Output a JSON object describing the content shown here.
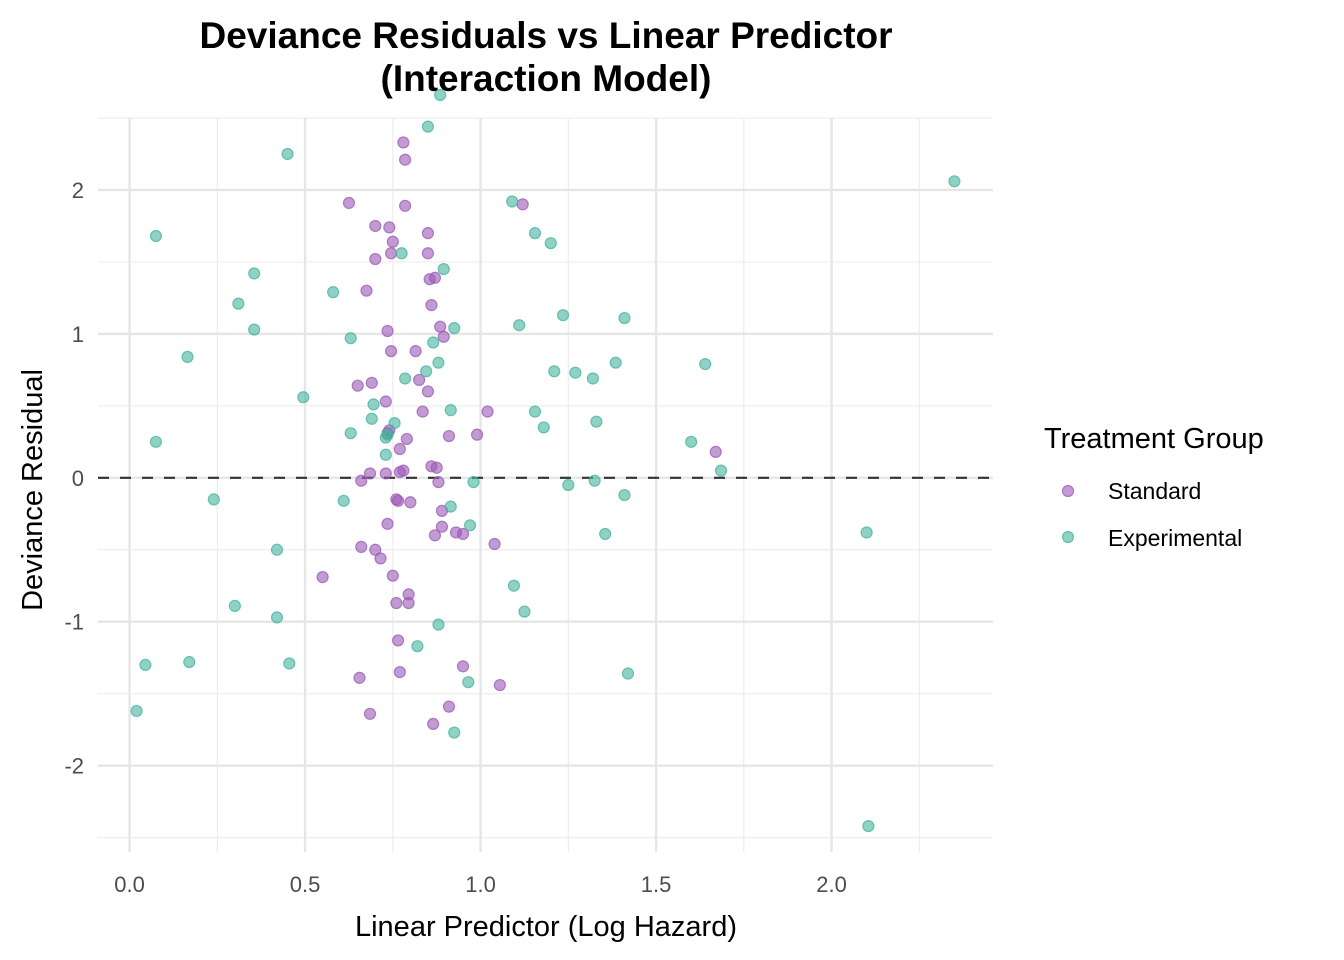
{
  "chart_data": {
    "type": "scatter",
    "title": "Deviance Residuals vs Linear Predictor",
    "subtitle": "(Interaction Model)",
    "xlabel": "Linear Predictor (Log Hazard)",
    "ylabel": "Deviance Residual",
    "xlim": [
      -0.09,
      2.46
    ],
    "ylim": [
      -2.6,
      2.5
    ],
    "x_ticks": [
      0.0,
      0.5,
      1.0,
      1.5,
      2.0
    ],
    "x_tick_labels": [
      "0.0",
      "0.5",
      "1.0",
      "1.5",
      "2.0"
    ],
    "y_ticks": [
      -2,
      -1,
      0,
      1,
      2
    ],
    "y_tick_labels": [
      "-2",
      "-1",
      "0",
      "1",
      "2"
    ],
    "grid": true,
    "reference_line": {
      "y": 0,
      "style": "dashed",
      "color": "#333333"
    },
    "legend": {
      "title": "Treatment Group",
      "position": "right",
      "entries": [
        "Standard",
        "Experimental"
      ]
    },
    "series": [
      {
        "name": "Standard",
        "color": "#9B59B6",
        "points": [
          [
            0.78,
            2.33
          ],
          [
            0.785,
            2.21
          ],
          [
            0.625,
            1.91
          ],
          [
            0.785,
            1.89
          ],
          [
            1.12,
            1.9
          ],
          [
            0.7,
            1.75
          ],
          [
            0.74,
            1.74
          ],
          [
            0.85,
            1.7
          ],
          [
            0.75,
            1.64
          ],
          [
            0.745,
            1.56
          ],
          [
            0.85,
            1.56
          ],
          [
            0.7,
            1.52
          ],
          [
            0.87,
            1.39
          ],
          [
            0.855,
            1.38
          ],
          [
            0.675,
            1.3
          ],
          [
            0.86,
            1.2
          ],
          [
            0.735,
            1.02
          ],
          [
            0.885,
            1.05
          ],
          [
            0.895,
            0.98
          ],
          [
            0.745,
            0.88
          ],
          [
            0.815,
            0.88
          ],
          [
            0.825,
            0.68
          ],
          [
            0.69,
            0.66
          ],
          [
            0.65,
            0.64
          ],
          [
            0.85,
            0.6
          ],
          [
            0.73,
            0.53
          ],
          [
            0.835,
            0.46
          ],
          [
            0.91,
            0.29
          ],
          [
            0.99,
            0.3
          ],
          [
            0.79,
            0.27
          ],
          [
            1.02,
            0.46
          ],
          [
            0.74,
            0.33
          ],
          [
            0.735,
            0.31
          ],
          [
            0.77,
            0.2
          ],
          [
            0.86,
            0.08
          ],
          [
            0.875,
            0.07
          ],
          [
            0.685,
            0.03
          ],
          [
            0.73,
            0.03
          ],
          [
            0.77,
            0.04
          ],
          [
            0.78,
            0.05
          ],
          [
            0.66,
            -0.02
          ],
          [
            0.88,
            -0.03
          ],
          [
            1.67,
            0.18
          ],
          [
            0.76,
            -0.15
          ],
          [
            0.765,
            -0.16
          ],
          [
            0.8,
            -0.17
          ],
          [
            0.735,
            -0.32
          ],
          [
            0.89,
            -0.23
          ],
          [
            0.89,
            -0.34
          ],
          [
            0.87,
            -0.4
          ],
          [
            0.93,
            -0.38
          ],
          [
            0.95,
            -0.39
          ],
          [
            1.04,
            -0.46
          ],
          [
            0.66,
            -0.48
          ],
          [
            0.7,
            -0.5
          ],
          [
            0.715,
            -0.56
          ],
          [
            0.55,
            -0.69
          ],
          [
            0.75,
            -0.68
          ],
          [
            0.795,
            -0.81
          ],
          [
            0.76,
            -0.87
          ],
          [
            0.795,
            -0.87
          ],
          [
            0.765,
            -1.13
          ],
          [
            0.95,
            -1.31
          ],
          [
            0.77,
            -1.35
          ],
          [
            0.655,
            -1.39
          ],
          [
            1.055,
            -1.44
          ],
          [
            0.685,
            -1.64
          ],
          [
            0.91,
            -1.59
          ],
          [
            0.865,
            -1.71
          ]
        ]
      },
      {
        "name": "Experimental",
        "color": "#45B39D",
        "points": [
          [
            0.885,
            2.66
          ],
          [
            0.85,
            2.44
          ],
          [
            0.45,
            2.25
          ],
          [
            2.35,
            2.06
          ],
          [
            1.09,
            1.92
          ],
          [
            0.075,
            1.68
          ],
          [
            1.155,
            1.7
          ],
          [
            1.2,
            1.63
          ],
          [
            0.775,
            1.56
          ],
          [
            0.895,
            1.45
          ],
          [
            0.355,
            1.42
          ],
          [
            0.58,
            1.29
          ],
          [
            0.31,
            1.21
          ],
          [
            1.235,
            1.13
          ],
          [
            1.41,
            1.11
          ],
          [
            0.355,
            1.03
          ],
          [
            0.925,
            1.04
          ],
          [
            1.11,
            1.06
          ],
          [
            0.63,
            0.97
          ],
          [
            0.865,
            0.94
          ],
          [
            0.165,
            0.84
          ],
          [
            0.88,
            0.8
          ],
          [
            1.385,
            0.8
          ],
          [
            1.64,
            0.79
          ],
          [
            1.21,
            0.74
          ],
          [
            0.845,
            0.74
          ],
          [
            1.27,
            0.73
          ],
          [
            1.32,
            0.69
          ],
          [
            0.785,
            0.69
          ],
          [
            0.495,
            0.56
          ],
          [
            0.695,
            0.51
          ],
          [
            0.915,
            0.47
          ],
          [
            1.155,
            0.46
          ],
          [
            0.69,
            0.41
          ],
          [
            1.33,
            0.39
          ],
          [
            0.755,
            0.38
          ],
          [
            1.18,
            0.35
          ],
          [
            0.63,
            0.31
          ],
          [
            0.735,
            0.3
          ],
          [
            0.73,
            0.28
          ],
          [
            0.075,
            0.25
          ],
          [
            1.6,
            0.25
          ],
          [
            0.73,
            0.16
          ],
          [
            1.685,
            0.05
          ],
          [
            0.98,
            -0.03
          ],
          [
            1.25,
            -0.05
          ],
          [
            1.325,
            -0.02
          ],
          [
            0.24,
            -0.15
          ],
          [
            0.61,
            -0.16
          ],
          [
            0.915,
            -0.2
          ],
          [
            1.41,
            -0.12
          ],
          [
            0.97,
            -0.33
          ],
          [
            1.355,
            -0.39
          ],
          [
            2.1,
            -0.38
          ],
          [
            0.42,
            -0.5
          ],
          [
            1.095,
            -0.75
          ],
          [
            0.3,
            -0.89
          ],
          [
            1.125,
            -0.93
          ],
          [
            0.42,
            -0.97
          ],
          [
            0.88,
            -1.02
          ],
          [
            0.82,
            -1.17
          ],
          [
            0.045,
            -1.3
          ],
          [
            0.17,
            -1.28
          ],
          [
            0.455,
            -1.29
          ],
          [
            1.42,
            -1.36
          ],
          [
            0.965,
            -1.42
          ],
          [
            0.925,
            -1.77
          ],
          [
            0.02,
            -1.62
          ],
          [
            2.105,
            -2.42
          ]
        ]
      }
    ]
  }
}
